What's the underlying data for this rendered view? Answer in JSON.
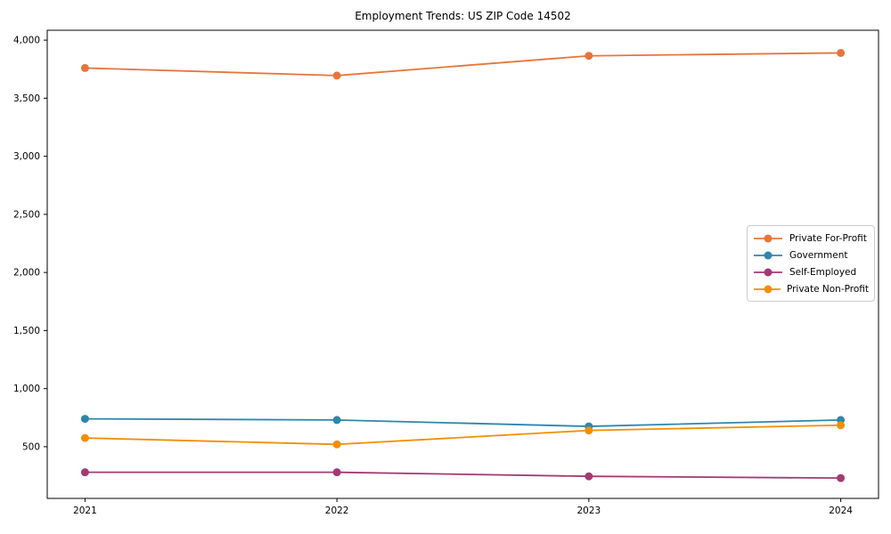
{
  "chart_data": {
    "type": "line",
    "title": "Employment Trends: US ZIP Code 14502",
    "x": [
      2021,
      2022,
      2023,
      2024
    ],
    "x_tick_labels": [
      "2021",
      "2022",
      "2023",
      "2024"
    ],
    "y_ticks": [
      500,
      1000,
      1500,
      2000,
      2500,
      3000,
      3500,
      4000
    ],
    "y_tick_labels": [
      "500",
      "1,000",
      "1,500",
      "2,000",
      "2,500",
      "3,000",
      "3,500",
      "4,000"
    ],
    "xlim": [
      2020.85,
      2024.15
    ],
    "ylim": [
      55,
      4085
    ],
    "xlabel": "",
    "ylabel": "",
    "grid": false,
    "legend_position": "center-right",
    "series": [
      {
        "name": "Private For-Profit",
        "color": "#e8743b",
        "values": [
          3760,
          3695,
          3865,
          3890
        ]
      },
      {
        "name": "Government",
        "color": "#2e86ab",
        "values": [
          740,
          730,
          675,
          730
        ]
      },
      {
        "name": "Self-Employed",
        "color": "#a23b72",
        "values": [
          280,
          280,
          245,
          230
        ]
      },
      {
        "name": "Private Non-Profit",
        "color": "#f18f01",
        "values": [
          575,
          520,
          640,
          685
        ]
      }
    ],
    "colors": {
      "frame": "#000000",
      "tick_text": "#000000",
      "background": "#ffffff",
      "legend_border": "#cccccc"
    }
  }
}
